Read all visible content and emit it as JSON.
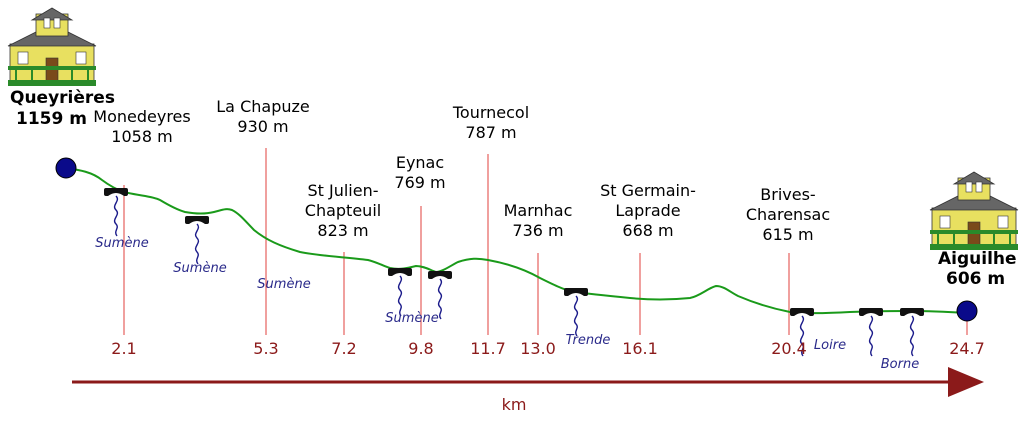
{
  "colors": {
    "route": "#1a9a1a",
    "marker_line": "#e0403c",
    "km_text": "#8b1a1a",
    "axis_arrow": "#8b1a1a",
    "river_text": "#2a2a8a",
    "endpoint": "#0a0a8a",
    "text": "#000000"
  },
  "start": {
    "name": "Queyrières",
    "elevation": "1159 m",
    "icon": "house-icon"
  },
  "end": {
    "name": "Aiguilhe",
    "elevation": "606 m",
    "icon": "house-icon"
  },
  "places": [
    {
      "name": "Monedeyres",
      "elevation": "1058 m",
      "km": ""
    },
    {
      "name": "La Chapuze",
      "elevation": "930 m",
      "km": "5.3"
    },
    {
      "name": "St Julien-\nChapteuil",
      "elevation": "823 m",
      "km": "7.2"
    },
    {
      "name": "Eynac",
      "elevation": "769 m",
      "km": "9.8"
    },
    {
      "name": "Tournecol",
      "elevation": "787 m",
      "km": "11.7"
    },
    {
      "name": "Marnhac",
      "elevation": "736 m",
      "km": "13.0"
    },
    {
      "name": "St Germain-\nLaprade",
      "elevation": "668 m",
      "km": "16.1"
    },
    {
      "name": "Brives-\nCharensac",
      "elevation": "615 m",
      "km": "20.4"
    }
  ],
  "km_marks": [
    "2.1",
    "5.3",
    "7.2",
    "9.8",
    "11.7",
    "13.0",
    "16.1",
    "20.4",
    "24.7"
  ],
  "rivers": [
    "Sumène",
    "Sumène",
    "Sumène",
    "Sumène",
    "Trende",
    "Loire",
    "Borne"
  ],
  "axis": {
    "label": "km"
  }
}
